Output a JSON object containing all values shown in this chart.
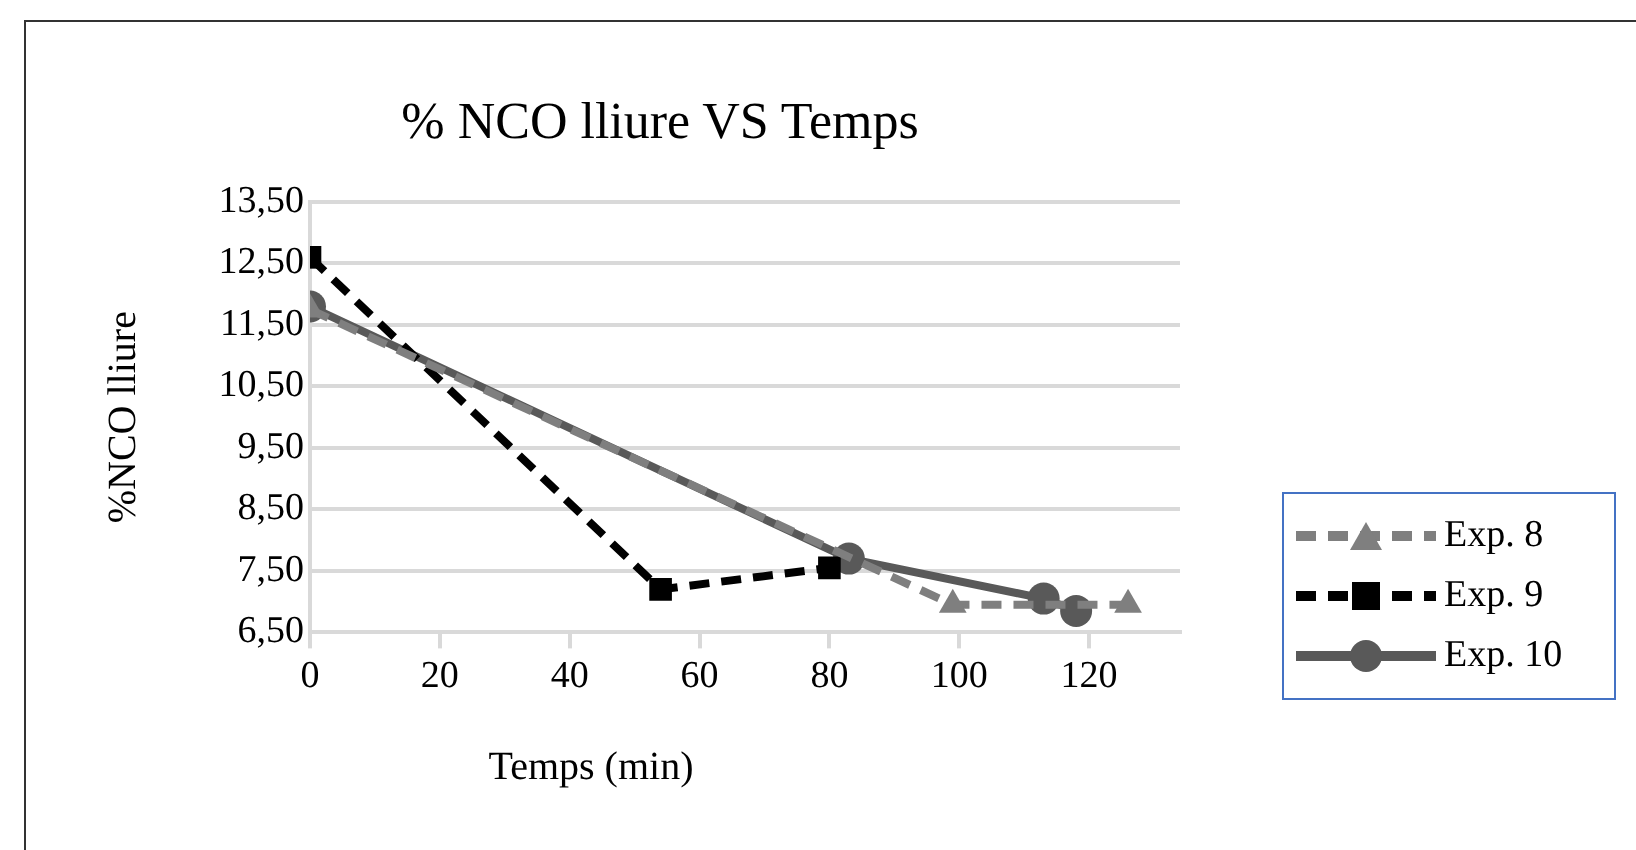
{
  "chart_data": {
    "type": "line",
    "title": "% NCO lliure VS Temps",
    "xlabel": "Temps (min)",
    "ylabel": "%NCO lliure",
    "xlim": [
      0,
      134
    ],
    "xticks": [
      0,
      20,
      40,
      60,
      80,
      100,
      120
    ],
    "ylim": [
      6.5,
      13.5
    ],
    "yticks": [
      {
        "value": 6.5,
        "label": "6,50"
      },
      {
        "value": 7.5,
        "label": "7,50"
      },
      {
        "value": 8.5,
        "label": "8,50"
      },
      {
        "value": 9.5,
        "label": "9,50"
      },
      {
        "value": 10.5,
        "label": "10,50"
      },
      {
        "value": 11.5,
        "label": "11,50"
      },
      {
        "value": 12.5,
        "label": "12,50"
      },
      {
        "value": 13.5,
        "label": "13,50"
      }
    ],
    "grid": "y",
    "legend": "right",
    "series": [
      {
        "name": "Exp. 8",
        "color": "#7f7f7f",
        "marker": "triangle",
        "line_style": "dashed",
        "x": [
          0,
          99,
          126
        ],
        "values": [
          11.75,
          6.95,
          6.95
        ]
      },
      {
        "name": "Exp. 9",
        "color": "#000000",
        "marker": "square",
        "line_style": "dashed",
        "x": [
          0,
          54,
          80
        ],
        "values": [
          12.6,
          7.2,
          7.55
        ]
      },
      {
        "name": "Exp. 10",
        "color": "#595959",
        "marker": "circle",
        "line_style": "solid",
        "x": [
          0,
          83,
          113,
          118
        ],
        "values": [
          11.8,
          7.7,
          7.05,
          6.85
        ]
      }
    ]
  }
}
